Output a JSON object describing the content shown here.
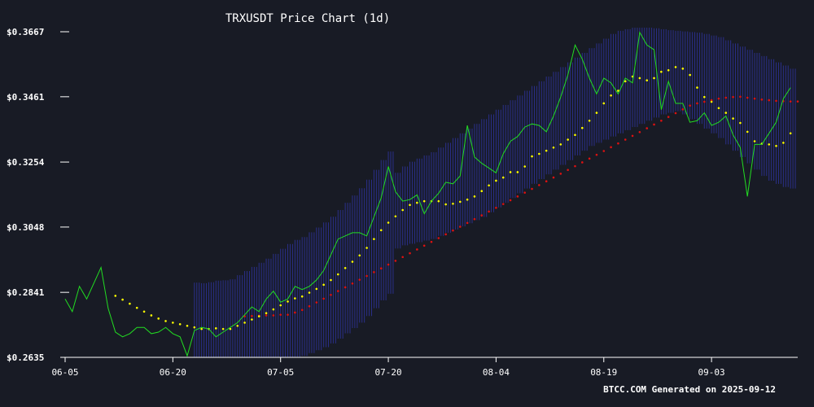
{
  "chart_data": {
    "type": "line",
    "title": "TRXUSDT Price Chart (1d)",
    "footer": "BTCC.COM Generated on 2025-09-12",
    "xlabel": "",
    "ylabel": "",
    "ylim": [
      0.2635,
      0.3667
    ],
    "y_ticks": [
      "$0.2635",
      "$0.2841",
      "$0.3048",
      "$0.3254",
      "$0.3461",
      "$0.3667"
    ],
    "y_tick_values": [
      0.2635,
      0.2841,
      0.3048,
      0.3254,
      0.3461,
      0.3667
    ],
    "x_tick_labels": [
      "06-05",
      "06-20",
      "07-05",
      "07-20",
      "08-04",
      "08-19",
      "09-03"
    ],
    "x_tick_index": [
      0,
      15,
      30,
      45,
      60,
      75,
      90
    ],
    "grid": false,
    "colors": {
      "price": "#22dd22",
      "ma20": "#ffff00",
      "ma50": "#dd1111",
      "band": "#2a2f8a",
      "axis": "#ffffff"
    },
    "series": [
      {
        "name": "Close",
        "values": [
          0.282,
          0.278,
          0.286,
          0.282,
          0.287,
          0.292,
          0.279,
          0.2715,
          0.27,
          0.271,
          0.273,
          0.273,
          0.271,
          0.2715,
          0.273,
          0.271,
          0.27,
          0.264,
          0.272,
          0.273,
          0.2725,
          0.27,
          0.2715,
          0.273,
          0.2745,
          0.277,
          0.2795,
          0.278,
          0.282,
          0.2845,
          0.281,
          0.282,
          0.286,
          0.285,
          0.286,
          0.288,
          0.291,
          0.296,
          0.301,
          0.302,
          0.303,
          0.303,
          0.302,
          0.308,
          0.314,
          0.324,
          0.316,
          0.313,
          0.3135,
          0.315,
          0.309,
          0.313,
          0.3155,
          0.319,
          0.3185,
          0.321,
          0.337,
          0.327,
          0.325,
          0.3235,
          0.322,
          0.328,
          0.332,
          0.3335,
          0.3365,
          0.3375,
          0.337,
          0.335,
          0.34,
          0.346,
          0.353,
          0.3625,
          0.358,
          0.352,
          0.347,
          0.352,
          0.3505,
          0.347,
          0.352,
          0.3505,
          0.3665,
          0.3625,
          0.361,
          0.342,
          0.351,
          0.344,
          0.344,
          0.338,
          0.3385,
          0.341,
          0.337,
          0.338,
          0.34,
          0.334,
          0.33,
          0.3145,
          0.331,
          0.331,
          0.3345,
          0.338,
          0.3455,
          0.349
        ]
      },
      {
        "name": "MA20",
        "start_index": 7,
        "values": [
          0.283,
          0.2818,
          0.2805,
          0.2792,
          0.278,
          0.2768,
          0.2758,
          0.275,
          0.2745,
          0.274,
          0.2735,
          0.273,
          0.2725,
          0.2725,
          0.2727,
          0.2725,
          0.2725,
          0.2735,
          0.2745,
          0.2755,
          0.2765,
          0.2775,
          0.2787,
          0.28,
          0.2812,
          0.2822,
          0.2828,
          0.284,
          0.2852,
          0.2865,
          0.288,
          0.2898,
          0.2918,
          0.2938,
          0.2958,
          0.2982,
          0.301,
          0.3038,
          0.3062,
          0.3082,
          0.3102,
          0.3118,
          0.3125,
          0.313,
          0.313,
          0.313,
          0.312,
          0.3122,
          0.3128,
          0.3135,
          0.3145,
          0.3162,
          0.318,
          0.3195,
          0.3205,
          0.3222,
          0.3222,
          0.324,
          0.3272,
          0.328,
          0.329,
          0.33,
          0.331,
          0.3325,
          0.334,
          0.3362,
          0.3385,
          0.341,
          0.344,
          0.3465,
          0.348,
          0.351,
          0.3525,
          0.352,
          0.3513,
          0.352,
          0.354,
          0.3545,
          0.3555,
          0.355,
          0.353,
          0.349,
          0.346,
          0.3445,
          0.3425,
          0.341,
          0.3392,
          0.3378,
          0.335,
          0.332,
          0.3312,
          0.331,
          0.3305,
          0.3315,
          0.3345
        ]
      },
      {
        "name": "MA50",
        "start_index": 25,
        "values": [
          0.2765,
          0.2766,
          0.2767,
          0.2768,
          0.2768,
          0.277,
          0.277,
          0.2777,
          0.2785,
          0.2797,
          0.2809,
          0.2821,
          0.2833,
          0.2845,
          0.2857,
          0.2869,
          0.2881,
          0.2893,
          0.2905,
          0.2917,
          0.2929,
          0.2941,
          0.2953,
          0.2965,
          0.2977,
          0.2989,
          0.3001,
          0.3013,
          0.3025,
          0.3037,
          0.3049,
          0.3061,
          0.3073,
          0.3085,
          0.3097,
          0.3109,
          0.3121,
          0.3133,
          0.3145,
          0.3157,
          0.3169,
          0.3181,
          0.3193,
          0.3205,
          0.3217,
          0.3229,
          0.3241,
          0.3253,
          0.3265,
          0.3277,
          0.3289,
          0.3301,
          0.3313,
          0.3325,
          0.3337,
          0.3349,
          0.3361,
          0.3373,
          0.3385,
          0.3397,
          0.3409,
          0.3421,
          0.3433,
          0.344,
          0.3445,
          0.345,
          0.3455,
          0.3458,
          0.346,
          0.3461,
          0.3458,
          0.3455,
          0.3452,
          0.345,
          0.3448,
          0.3447,
          0.3446,
          0.3446
        ]
      },
      {
        "name": "Bollinger Upper",
        "start_index": 46,
        "values": [
          0.322,
          0.324,
          0.3255,
          0.3265,
          0.3275,
          0.3285,
          0.33,
          0.3315,
          0.333,
          0.3345,
          0.336,
          0.3375,
          0.339,
          0.3405,
          0.342,
          0.3435,
          0.345,
          0.3465,
          0.348,
          0.3495,
          0.351,
          0.3525,
          0.354,
          0.3555,
          0.357,
          0.3585,
          0.36,
          0.3615,
          0.363,
          0.3645,
          0.366,
          0.367,
          0.3675,
          0.368,
          0.368,
          0.368,
          0.3678,
          0.3675,
          0.3672,
          0.367,
          0.3668,
          0.3666,
          0.3664,
          0.366,
          0.3655,
          0.365,
          0.364,
          0.363,
          0.362,
          0.361,
          0.36,
          0.359,
          0.358,
          0.357,
          0.356,
          0.355
        ]
      },
      {
        "name": "Bollinger Lower",
        "start_index": 46,
        "values": [
          0.298,
          0.299,
          0.2995,
          0.3,
          0.3005,
          0.301,
          0.302,
          0.303,
          0.304,
          0.305,
          0.306,
          0.307,
          0.308,
          0.3095,
          0.311,
          0.3125,
          0.314,
          0.3155,
          0.317,
          0.3185,
          0.32,
          0.3215,
          0.323,
          0.3245,
          0.326,
          0.3275,
          0.329,
          0.3305,
          0.3315,
          0.3325,
          0.3335,
          0.3345,
          0.3355,
          0.3365,
          0.3375,
          0.3385,
          0.3395,
          0.3405,
          0.341,
          0.3415,
          0.3405,
          0.339,
          0.3375,
          0.336,
          0.3345,
          0.333,
          0.331,
          0.329,
          0.327,
          0.325,
          0.323,
          0.321,
          0.3195,
          0.3185,
          0.3175,
          0.317
        ]
      }
    ]
  }
}
